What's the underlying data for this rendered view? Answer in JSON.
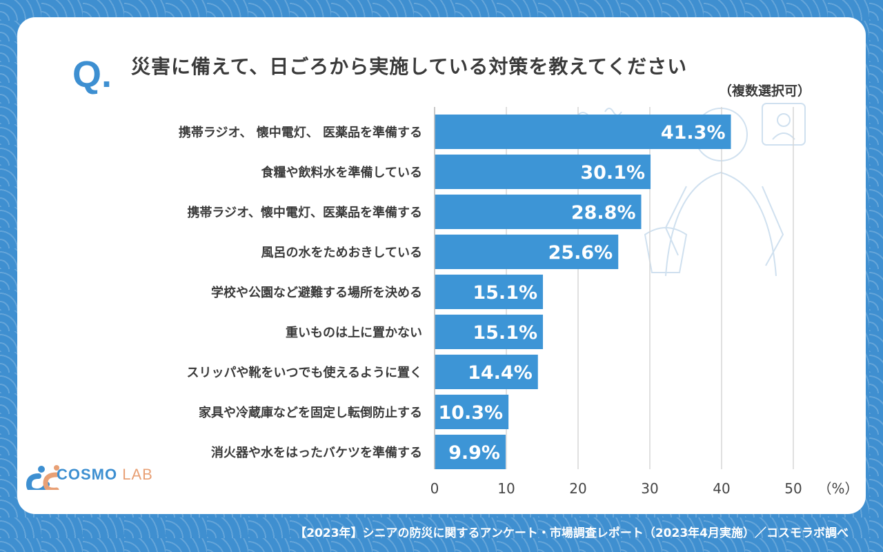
{
  "question": {
    "mark": "Q.",
    "text": "災害に備えて、日ごろから実施している対策を教えてください",
    "note": "（複数選択可）"
  },
  "chart_data": {
    "type": "bar",
    "orientation": "horizontal",
    "categories": [
      "携帯ラジオ、 懐中電灯、 医薬品を準備する",
      "食糧や飲料水を準備している",
      "携帯ラジオ、懐中電灯、医薬品を準備する",
      "風呂の水をためおきしている",
      "学校や公園など避難する場所を決める",
      "重いものは上に置かない",
      "スリッパや靴をいつでも使えるように置く",
      "家具や冷蔵庫などを固定し転倒防止する",
      "消火器や水をはったバケツを準備する"
    ],
    "values": [
      41.3,
      30.1,
      28.8,
      25.6,
      15.1,
      15.1,
      14.4,
      10.3,
      9.9
    ],
    "value_labels": [
      "41.3%",
      "30.1%",
      "28.8%",
      "25.6%",
      "15.1%",
      "15.1%",
      "14.4%",
      "10.3%",
      "9.9%"
    ],
    "xticks": [
      "0",
      "10",
      "20",
      "30",
      "40",
      "50"
    ],
    "xunit": "（%）",
    "xlim": [
      0,
      50
    ],
    "grid": true,
    "bar_color": "#3d95d6"
  },
  "logo": {
    "cosmo": "COSMO",
    "lab": "LAB"
  },
  "footer": "【2023年】シニアの防災に関するアンケート・市場調査レポート（2023年4月実施）／コスモラボ調べ",
  "colors": {
    "background": "#3f8fd0",
    "accent": "#3d8fd1",
    "text": "#3a3a3a",
    "logo_orange": "#e8a075"
  }
}
